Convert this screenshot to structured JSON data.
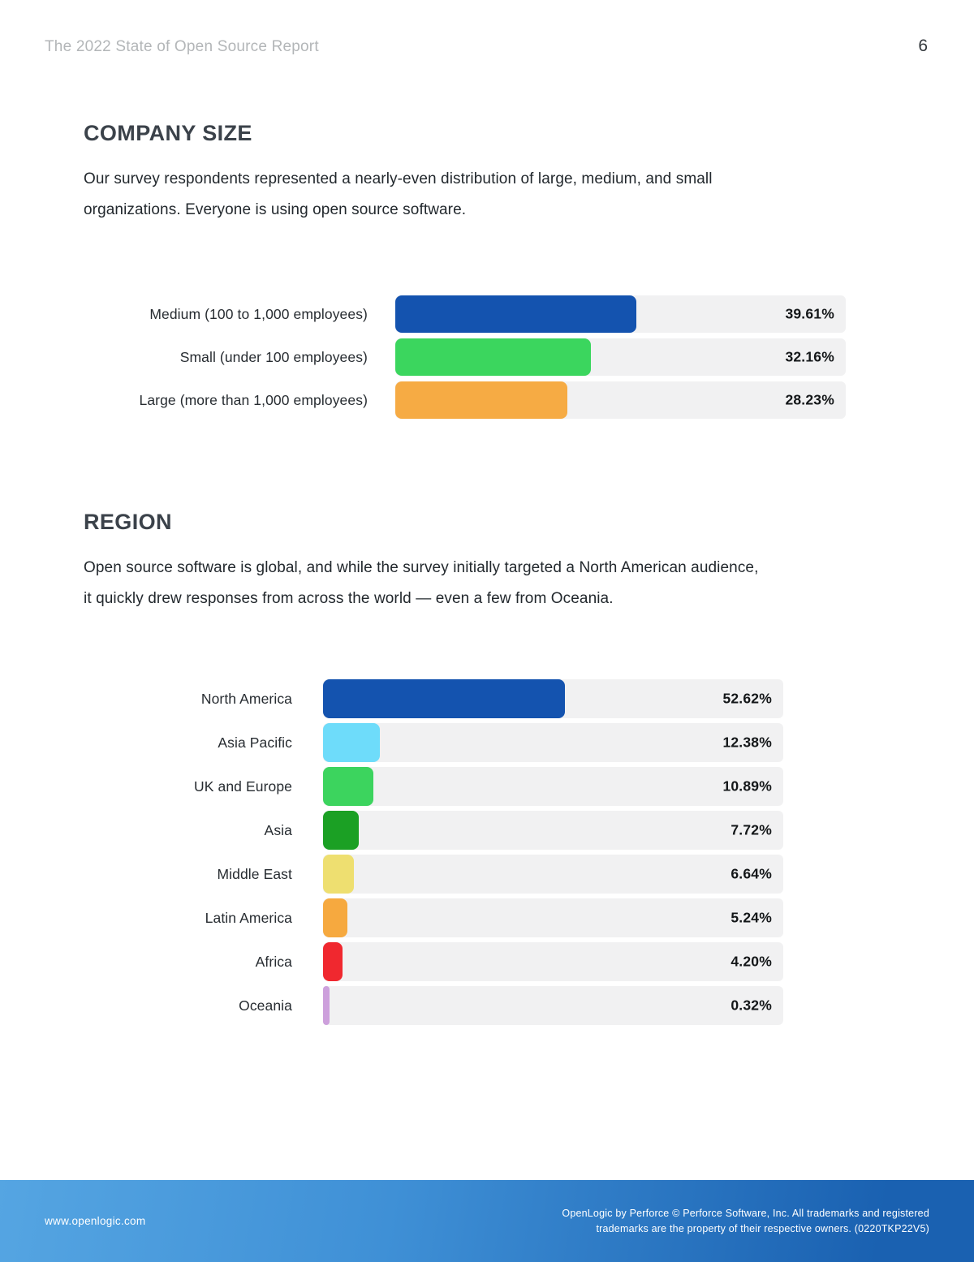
{
  "header": {
    "title": "The 2022 State of Open Source Report",
    "page_number": "6"
  },
  "sections": {
    "company_size": {
      "heading": "COMPANY SIZE",
      "paragraph": "Our survey respondents represented a nearly-even distribution of large, medium, and small\norganizations. Everyone is using open source software."
    },
    "region": {
      "heading": "REGION",
      "paragraph": "Open source software is global, and while the survey initially targeted a North American audience,\nit quickly drew responses from across the world — even a few from Oceania."
    }
  },
  "chart_data": [
    {
      "type": "bar",
      "orientation": "horizontal",
      "title": "COMPANY SIZE",
      "categories": [
        "Medium (100 to 1,000 employees)",
        "Small (under 100 employees)",
        "Large (more than 1,000 employees)"
      ],
      "values": [
        39.61,
        32.16,
        28.23
      ],
      "value_labels": [
        "39.61%",
        "32.16%",
        "28.23%"
      ],
      "bar_colors": [
        "#1453af",
        "#3bd65e",
        "#f6ab44"
      ],
      "track_color": "#f1f1f2",
      "xlim": [
        0,
        74
      ],
      "grid": false,
      "legend": false
    },
    {
      "type": "bar",
      "orientation": "horizontal",
      "title": "REGION",
      "categories": [
        "North America",
        "Asia Pacific",
        "UK and Europe",
        "Asia",
        "Middle East",
        "Latin America",
        "Africa",
        "Oceania"
      ],
      "values": [
        52.62,
        12.38,
        10.89,
        7.72,
        6.64,
        5.24,
        4.2,
        0.32
      ],
      "value_labels": [
        "52.62%",
        "12.38%",
        "10.89%",
        "7.72%",
        "6.64%",
        "5.24%",
        "4.20%",
        "0.32%"
      ],
      "bar_colors": [
        "#1453af",
        "#6edcfa",
        "#3cd45e",
        "#1ba024",
        "#eedf70",
        "#f6a93f",
        "#f0282f",
        "#cda0dc"
      ],
      "track_color": "#f1f1f2",
      "xlim": [
        0,
        100
      ],
      "grid": false,
      "legend": false
    }
  ],
  "footer": {
    "url": "www.openlogic.com",
    "legal": "OpenLogic by Perforce © Perforce Software, Inc. All trademarks and registered\ntrademarks are the property of their respective owners. (0220TKP22V5)"
  }
}
